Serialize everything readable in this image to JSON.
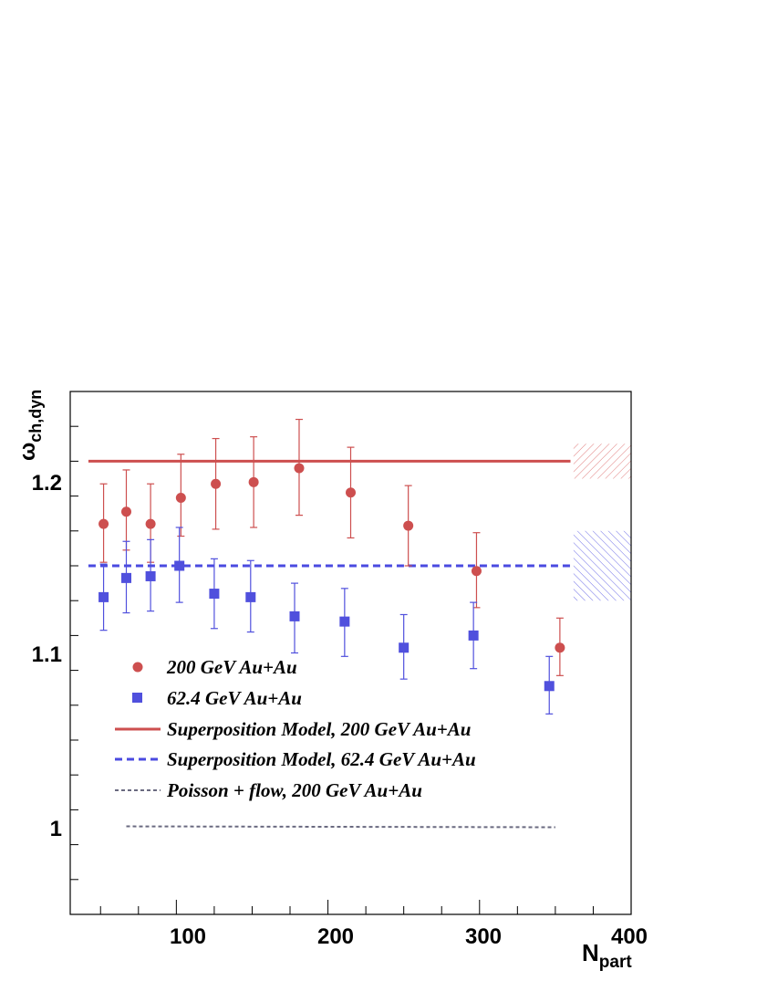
{
  "chart_data": {
    "type": "scatter",
    "xlabel": "N",
    "xlabel_sub": "part",
    "ylabel": "ω",
    "ylabel_sub": "ch,dyn",
    "xlim": [
      30,
      400
    ],
    "ylim": [
      0.95,
      1.25
    ],
    "xticks": [
      100,
      200,
      300,
      400
    ],
    "xtick_labels": [
      "100",
      "200",
      "300",
      "400"
    ],
    "yticks": [
      1.0,
      1.1,
      1.2
    ],
    "ytick_labels": [
      "1",
      "1.1",
      "1.2"
    ],
    "grid": false,
    "legend_position": "bottom-left",
    "series": [
      {
        "name": "200 GeV Au+Au",
        "marker": "circle",
        "color": "#cd4f4f",
        "x": [
          52,
          67,
          83,
          103,
          126,
          151,
          181,
          215,
          253,
          298,
          353
        ],
        "y": [
          1.174,
          1.181,
          1.174,
          1.189,
          1.197,
          1.198,
          1.206,
          1.192,
          1.173,
          1.147,
          1.103
        ],
        "err_low": [
          0.022,
          0.022,
          0.022,
          0.022,
          0.026,
          0.026,
          0.027,
          0.026,
          0.023,
          0.021,
          0.016
        ],
        "err_high": [
          0.023,
          0.024,
          0.023,
          0.025,
          0.026,
          0.026,
          0.028,
          0.026,
          0.023,
          0.022,
          0.017
        ]
      },
      {
        "name": "62.4 GeV Au+Au",
        "marker": "square",
        "color": "#5050dd",
        "x": [
          52,
          67,
          83,
          102,
          125,
          149,
          178,
          211,
          250,
          296,
          346
        ],
        "y": [
          1.132,
          1.143,
          1.144,
          1.15,
          1.134,
          1.132,
          1.121,
          1.118,
          1.103,
          1.11,
          1.081
        ],
        "err_low": [
          0.019,
          0.02,
          0.02,
          0.021,
          0.02,
          0.02,
          0.021,
          0.02,
          0.018,
          0.019,
          0.016
        ],
        "err_high": [
          0.019,
          0.021,
          0.021,
          0.022,
          0.02,
          0.021,
          0.019,
          0.019,
          0.019,
          0.019,
          0.017
        ]
      }
    ],
    "lines": [
      {
        "name": "Superposition Model, 200 GeV Au+Au",
        "style": "solid",
        "color": "#cd4f4f",
        "x": [
          42,
          360
        ],
        "y": [
          1.21,
          1.21
        ],
        "band": [
          1.2,
          1.22
        ]
      },
      {
        "name": "Superposition Model, 62.4 GeV Au+Au",
        "style": "dashed",
        "color": "#4a4ae0",
        "x": [
          42,
          360
        ],
        "y": [
          1.15,
          1.15
        ],
        "band": [
          1.13,
          1.17
        ]
      },
      {
        "name": "Poisson + flow, 200 GeV Au+Au",
        "style": "dotted",
        "color": "#6a6a80",
        "x": [
          67,
          350
        ],
        "y": [
          1.0005,
          1.0
        ],
        "band": null
      }
    ]
  }
}
